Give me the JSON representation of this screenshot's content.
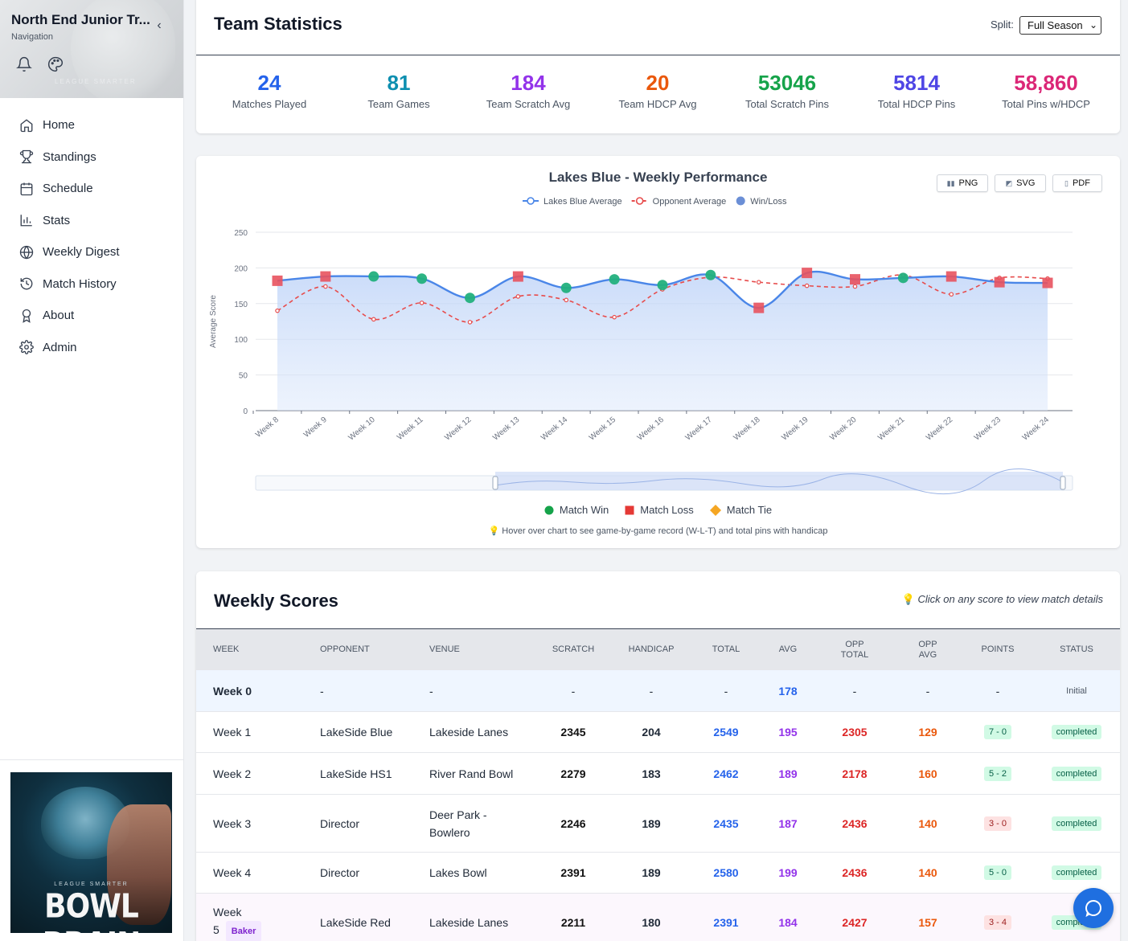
{
  "sidebar": {
    "title": "North End Junior Tr...",
    "subtitle": "Navigation",
    "items": [
      {
        "label": "Home",
        "icon": "home-icon"
      },
      {
        "label": "Standings",
        "icon": "trophy-icon"
      },
      {
        "label": "Schedule",
        "icon": "calendar-icon"
      },
      {
        "label": "Stats",
        "icon": "bar-chart-icon"
      },
      {
        "label": "Weekly Digest",
        "icon": "globe-icon"
      },
      {
        "label": "Match History",
        "icon": "history-icon"
      },
      {
        "label": "About",
        "icon": "award-icon"
      },
      {
        "label": "Admin",
        "icon": "gear-icon"
      }
    ],
    "header_watermark": "LEAGUE SMARTER",
    "logo_tagline": "LEAGUE SMARTER",
    "logo_name": "BOWL BRAIN"
  },
  "team_stats": {
    "title": "Team Statistics",
    "split_label": "Split:",
    "split_value": "Full Season",
    "stats": [
      {
        "value": "24",
        "label": "Matches Played",
        "color": "#2563eb"
      },
      {
        "value": "81",
        "label": "Team Games",
        "color": "#0e8fb0"
      },
      {
        "value": "184",
        "label": "Team Scratch Avg",
        "color": "#9333ea"
      },
      {
        "value": "20",
        "label": "Team HDCP Avg",
        "color": "#ea580c"
      },
      {
        "value": "53046",
        "label": "Total Scratch Pins",
        "color": "#16a34a"
      },
      {
        "value": "5814",
        "label": "Total HDCP Pins",
        "color": "#4f46e5"
      },
      {
        "value": "58,860",
        "label": "Total Pins w/HDCP",
        "color": "#db2777"
      }
    ]
  },
  "export": {
    "png": "PNG",
    "svg": "SVG",
    "pdf": "PDF"
  },
  "chart_data": {
    "type": "line",
    "title": "Lakes Blue - Weekly Performance",
    "ylabel": "Average Score",
    "ylim": [
      0,
      250
    ],
    "yticks": [
      0,
      50,
      100,
      150,
      200,
      250
    ],
    "categories": [
      "Week 8",
      "Week 9",
      "Week 10",
      "Week 11",
      "Week 12",
      "Week 13",
      "Week 14",
      "Week 15",
      "Week 16",
      "Week 17",
      "Week 18",
      "Week 19",
      "Week 20",
      "Week 21",
      "Week 22",
      "Week 23",
      "Week 24"
    ],
    "series": [
      {
        "name": "Lakes Blue Average",
        "color": "#4a86e8",
        "values": [
          182,
          188,
          188,
          185,
          158,
          188,
          172,
          184,
          176,
          190,
          144,
          193,
          184,
          186,
          188,
          180,
          179
        ]
      },
      {
        "name": "Opponent Average",
        "color": "#e74c4c",
        "values": [
          140,
          174,
          128,
          151,
          124,
          160,
          155,
          131,
          170,
          187,
          180,
          175,
          174,
          190,
          163,
          186,
          185
        ]
      },
      {
        "name": "Win/Loss",
        "color": "#6b8fd6",
        "results": [
          "L",
          "L",
          "W",
          "W",
          "W",
          "L",
          "W",
          "W",
          "W",
          "W",
          "L",
          "L",
          "L",
          "W",
          "L",
          "L",
          "L"
        ]
      }
    ],
    "result_legend": {
      "win": "Match Win",
      "loss": "Match Loss",
      "tie": "Match Tie"
    },
    "result_colors": {
      "win": "#22b07d",
      "loss": "#e8525e",
      "tie": "#f5a623"
    },
    "hint": "Hover over chart to see game-by-game record (W-L-T) and total pins with handicap"
  },
  "weekly_scores": {
    "title": "Weekly Scores",
    "hint": "Click on any score to view match details",
    "headers": {
      "week": "WEEK",
      "opponent": "OPPONENT",
      "venue": "VENUE",
      "scratch": "SCRATCH",
      "handicap": "HANDICAP",
      "total": "TOTAL",
      "avg": "AVG",
      "opp_total_1": "OPP",
      "opp_total_2": "TOTAL",
      "opp_avg_1": "OPP",
      "opp_avg_2": "AVG",
      "points": "POINTS",
      "status": "STATUS"
    },
    "rows": [
      {
        "week": "Week 0",
        "opponent": "-",
        "venue": "-",
        "scratch": "-",
        "handicap": "-",
        "total": "-",
        "avg": "178",
        "opp_total": "-",
        "opp_avg": "-",
        "points": "-",
        "status": "Initial"
      },
      {
        "week": "Week 1",
        "opponent": "LakeSide Blue",
        "venue": "Lakeside Lanes",
        "scratch": "2345",
        "handicap": "204",
        "total": "2549",
        "avg": "195",
        "opp_total": "2305",
        "opp_avg": "129",
        "points": "7 - 0",
        "status": "completed"
      },
      {
        "week": "Week 2",
        "opponent": "LakeSide HS1",
        "venue": "River Rand Bowl",
        "scratch": "2279",
        "handicap": "183",
        "total": "2462",
        "avg": "189",
        "opp_total": "2178",
        "opp_avg": "160",
        "points": "5 - 2",
        "status": "completed"
      },
      {
        "week": "Week 3",
        "opponent": "Director",
        "venue_1": "Deer Park -",
        "venue_2": "Bowlero",
        "scratch": "2246",
        "handicap": "189",
        "total": "2435",
        "avg": "187",
        "opp_total": "2436",
        "opp_avg": "140",
        "points": "3 - 0",
        "status": "completed"
      },
      {
        "week": "Week 4",
        "opponent": "Director",
        "venue": "Lakes Bowl",
        "scratch": "2391",
        "handicap": "189",
        "total": "2580",
        "avg": "199",
        "opp_total": "2436",
        "opp_avg": "140",
        "points": "5 - 0",
        "status": "completed"
      },
      {
        "week_1": "Week",
        "week_2": "5",
        "badge": "Baker",
        "opponent": "LakeSide Red",
        "venue": "Lakeside Lanes",
        "scratch": "2211",
        "handicap": "180",
        "total": "2391",
        "avg": "184",
        "opp_total": "2427",
        "opp_avg": "157",
        "points": "3 - 4",
        "status": "completed"
      }
    ]
  }
}
